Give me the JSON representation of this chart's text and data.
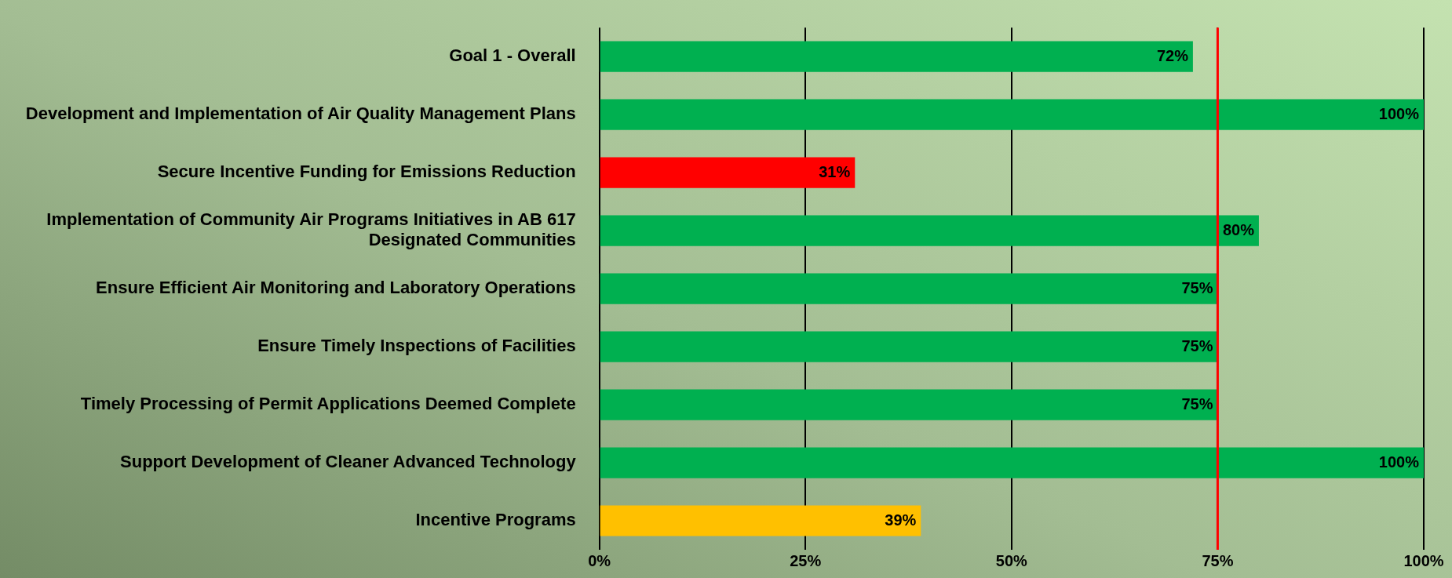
{
  "chart_data": {
    "type": "bar",
    "orientation": "horizontal",
    "categories": [
      "Goal 1 - Overall",
      "Development and Implementation of Air Quality Management Plans",
      "Secure Incentive Funding for Emissions Reduction",
      "Implementation of Community Air Programs Initiatives in AB 617 Designated Communities",
      "Ensure Efficient Air Monitoring and Laboratory Operations",
      "Ensure Timely Inspections of Facilities",
      "Timely Processing of Permit Applications Deemed Complete",
      "Support Development of Cleaner Advanced Technology",
      "Incentive Programs"
    ],
    "values": [
      72,
      100,
      31,
      80,
      75,
      75,
      75,
      100,
      39
    ],
    "colors": [
      "#00b050",
      "#00b050",
      "#ff0000",
      "#00b050",
      "#00b050",
      "#00b050",
      "#00b050",
      "#00b050",
      "#ffc000"
    ],
    "value_labels": [
      "72%",
      "100%",
      "31%",
      "80%",
      "75%",
      "75%",
      "75%",
      "100%",
      "39%"
    ],
    "xlim": [
      0,
      100
    ],
    "xticks": [
      {
        "value": 0,
        "label": "0%"
      },
      {
        "value": 25,
        "label": "25%"
      },
      {
        "value": 50,
        "label": "50%"
      },
      {
        "value": 75,
        "label": "75%"
      },
      {
        "value": 100,
        "label": "100%"
      }
    ],
    "ref_lines": [
      {
        "axis": "x",
        "value": 75,
        "label": null,
        "color": "#ff0000"
      }
    ],
    "grid": "x",
    "legend": false
  }
}
